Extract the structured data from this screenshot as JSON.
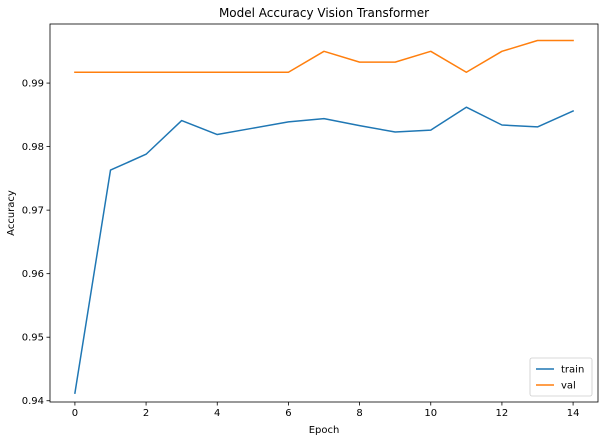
{
  "chart_data": {
    "type": "line",
    "title": "Model Accuracy Vision Transformer",
    "xlabel": "Epoch",
    "ylabel": "Accuracy",
    "xlim": [
      -0.7,
      14.7
    ],
    "ylim": [
      0.9398,
      0.9993
    ],
    "x_ticks": [
      0,
      2,
      4,
      6,
      8,
      10,
      12,
      14
    ],
    "y_ticks": [
      0.94,
      0.95,
      0.96,
      0.97,
      0.98,
      0.99
    ],
    "x": [
      0,
      1,
      2,
      3,
      4,
      5,
      6,
      7,
      8,
      9,
      10,
      11,
      12,
      13,
      14
    ],
    "series": [
      {
        "name": "train",
        "color": "#1f77b4",
        "values": [
          0.9412,
          0.9763,
          0.9788,
          0.9841,
          0.9819,
          0.9829,
          0.9839,
          0.9844,
          0.9833,
          0.9823,
          0.9826,
          0.9862,
          0.9834,
          0.9831,
          0.9856
        ]
      },
      {
        "name": "val",
        "color": "#ff7f0e",
        "values": [
          0.9917,
          0.9917,
          0.9917,
          0.9917,
          0.9917,
          0.9917,
          0.9917,
          0.995,
          0.9933,
          0.9933,
          0.995,
          0.9917,
          0.995,
          0.9967,
          0.9967
        ]
      }
    ],
    "grid": false,
    "legend_position": "lower-right"
  }
}
